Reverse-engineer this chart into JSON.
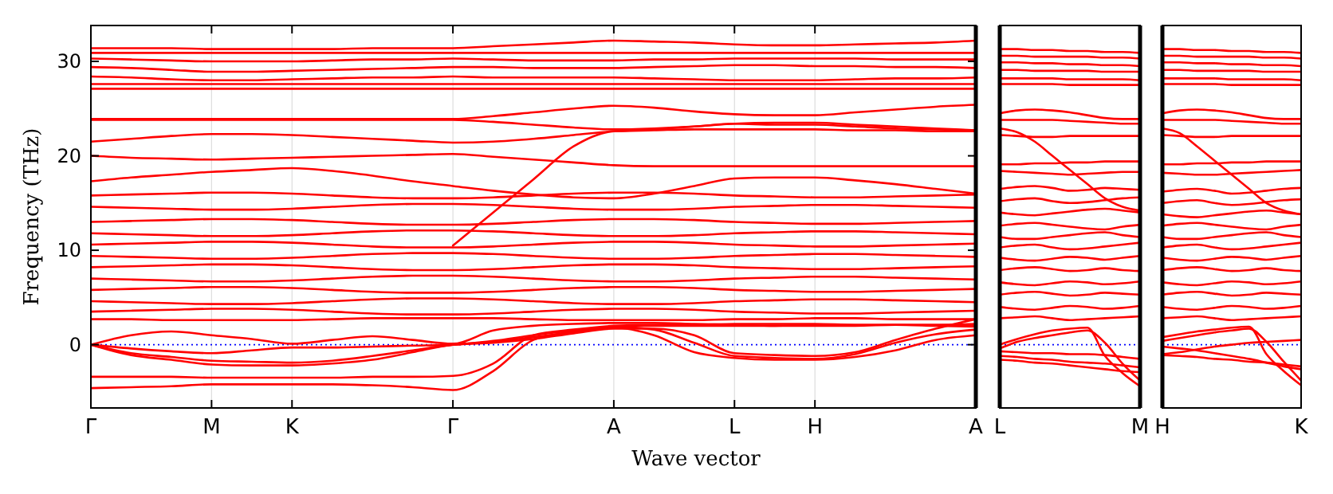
{
  "chart_data": [
    {
      "type": "line",
      "ylabel": "Frequency (THz)",
      "xlabel": "Wave vector",
      "color": "#ff0000",
      "grid": "x",
      "ylim": [
        -6.7,
        33.8
      ],
      "yticks": [
        0,
        10,
        20,
        30
      ],
      "categories": [
        "Γ",
        null,
        null,
        "M",
        null,
        "K",
        null,
        null,
        null,
        "Γ",
        null,
        null,
        null,
        "A",
        null,
        null,
        "L",
        null,
        "H",
        null,
        null,
        null,
        "A"
      ],
      "ref_lines": [
        {
          "axis": "y",
          "value": 0,
          "color": "#0000ff",
          "line_style": "dotted"
        }
      ],
      "series": [
        {
          "values": [
            31.4,
            31.4,
            31.4,
            31.3,
            31.3,
            31.3,
            31.3,
            31.4,
            31.4,
            31.4,
            31.6,
            31.8,
            32.0,
            32.2,
            32.1,
            32.0,
            31.8,
            31.7,
            31.7,
            31.8,
            31.9,
            32.0,
            32.2
          ]
        },
        {
          "values": [
            30.9,
            30.9,
            30.9,
            30.9,
            30.9,
            30.9,
            30.9,
            30.9,
            30.9,
            30.9,
            30.9,
            30.9,
            30.9,
            30.9,
            30.9,
            30.9,
            30.9,
            30.9,
            30.9,
            30.9,
            30.9,
            30.9,
            30.9
          ]
        },
        {
          "values": [
            30.3,
            30.2,
            30.1,
            30.0,
            30.0,
            30.0,
            30.1,
            30.2,
            30.2,
            30.3,
            30.2,
            30.1,
            30.1,
            30.1,
            30.2,
            30.2,
            30.3,
            30.3,
            30.3,
            30.3,
            30.2,
            30.2,
            30.2
          ]
        },
        {
          "values": [
            29.4,
            29.3,
            29.1,
            28.9,
            28.9,
            29.0,
            29.1,
            29.2,
            29.3,
            29.4,
            29.4,
            29.3,
            29.3,
            29.3,
            29.4,
            29.5,
            29.6,
            29.6,
            29.5,
            29.5,
            29.4,
            29.4,
            29.3
          ]
        },
        {
          "values": [
            28.4,
            28.3,
            28.1,
            28.0,
            28.0,
            28.1,
            28.2,
            28.3,
            28.3,
            28.4,
            28.3,
            28.3,
            28.3,
            28.3,
            28.2,
            28.1,
            28.0,
            28.0,
            28.0,
            28.1,
            28.2,
            28.2,
            28.3
          ]
        },
        {
          "values": [
            27.6,
            27.6,
            27.6,
            27.6,
            27.6,
            27.6,
            27.6,
            27.6,
            27.6,
            27.6,
            27.6,
            27.6,
            27.6,
            27.6,
            27.6,
            27.6,
            27.6,
            27.6,
            27.6,
            27.6,
            27.6,
            27.6,
            27.6
          ]
        },
        {
          "values": [
            27.1,
            27.1,
            27.1,
            27.1,
            27.1,
            27.1,
            27.1,
            27.1,
            27.1,
            27.1,
            27.1,
            27.1,
            27.1,
            27.1,
            27.1,
            27.1,
            27.1,
            27.1,
            27.1,
            27.1,
            27.1,
            27.1,
            27.1
          ]
        },
        {
          "values": [
            23.9,
            23.9,
            23.9,
            23.9,
            23.9,
            23.9,
            23.9,
            23.9,
            23.9,
            23.9,
            24.2,
            24.6,
            25.0,
            25.3,
            25.1,
            24.7,
            24.4,
            24.3,
            24.3,
            24.6,
            24.9,
            25.2,
            25.4
          ]
        },
        {
          "values": [
            23.8,
            23.8,
            23.8,
            23.8,
            23.8,
            23.8,
            23.8,
            23.8,
            23.8,
            23.8,
            23.6,
            23.3,
            23.0,
            22.8,
            22.9,
            23.1,
            23.4,
            23.3,
            23.3,
            23.1,
            22.9,
            22.8,
            22.7
          ]
        },
        {
          "values": [
            21.5,
            21.8,
            22.1,
            22.3,
            22.3,
            22.2,
            22.0,
            21.8,
            21.6,
            21.4,
            21.5,
            21.8,
            22.2,
            22.6,
            22.8,
            23.1,
            23.4,
            23.5,
            23.5,
            23.3,
            23.1,
            22.9,
            22.7
          ]
        },
        {
          "values": [
            20.0,
            19.8,
            19.7,
            19.6,
            19.7,
            19.8,
            19.9,
            20.0,
            20.1,
            20.2,
            19.9,
            19.6,
            19.3,
            19.0,
            18.9,
            18.9,
            18.9,
            18.9,
            18.9,
            18.9,
            18.9,
            18.9,
            18.9
          ]
        },
        {
          "values": [
            null,
            null,
            null,
            null,
            null,
            null,
            null,
            null,
            null,
            10.5,
            14.0,
            17.5,
            21.0,
            22.6,
            22.7,
            22.8,
            22.8,
            22.8,
            22.8,
            22.7,
            22.7,
            22.6,
            22.6
          ]
        },
        {
          "values": [
            17.3,
            17.7,
            18.0,
            18.3,
            18.5,
            18.7,
            18.4,
            17.9,
            17.3,
            16.8,
            16.3,
            15.9,
            15.6,
            15.5,
            16.0,
            16.8,
            17.6,
            17.7,
            17.7,
            17.4,
            17.0,
            16.5,
            16.0
          ]
        },
        {
          "values": [
            15.8,
            15.9,
            16.0,
            16.1,
            16.1,
            16.0,
            15.8,
            15.6,
            15.5,
            15.5,
            15.6,
            15.8,
            16.0,
            16.1,
            16.1,
            16.0,
            15.8,
            15.7,
            15.6,
            15.6,
            15.7,
            15.8,
            15.9
          ]
        },
        {
          "values": [
            14.6,
            14.5,
            14.4,
            14.3,
            14.3,
            14.4,
            14.6,
            14.8,
            14.9,
            14.9,
            14.8,
            14.6,
            14.4,
            14.3,
            14.3,
            14.4,
            14.6,
            14.7,
            14.8,
            14.8,
            14.7,
            14.6,
            14.5
          ]
        },
        {
          "values": [
            13.0,
            13.1,
            13.2,
            13.3,
            13.3,
            13.2,
            13.0,
            12.8,
            12.7,
            12.7,
            12.8,
            13.0,
            13.2,
            13.3,
            13.3,
            13.2,
            13.0,
            12.9,
            12.8,
            12.8,
            12.9,
            13.0,
            13.1
          ]
        },
        {
          "values": [
            11.8,
            11.7,
            11.6,
            11.5,
            11.5,
            11.6,
            11.8,
            12.0,
            12.1,
            12.1,
            12.0,
            11.8,
            11.6,
            11.5,
            11.5,
            11.6,
            11.8,
            11.9,
            12.0,
            12.0,
            11.9,
            11.8,
            11.7
          ]
        },
        {
          "values": [
            10.6,
            10.7,
            10.8,
            10.9,
            10.9,
            10.8,
            10.6,
            10.4,
            10.3,
            10.3,
            10.4,
            10.6,
            10.8,
            10.9,
            10.9,
            10.8,
            10.6,
            10.5,
            10.4,
            10.4,
            10.5,
            10.6,
            10.7
          ]
        },
        {
          "values": [
            9.4,
            9.3,
            9.2,
            9.1,
            9.1,
            9.2,
            9.4,
            9.6,
            9.7,
            9.7,
            9.6,
            9.4,
            9.2,
            9.1,
            9.1,
            9.2,
            9.4,
            9.5,
            9.6,
            9.6,
            9.5,
            9.4,
            9.3
          ]
        },
        {
          "values": [
            8.2,
            8.3,
            8.4,
            8.5,
            8.5,
            8.4,
            8.2,
            8.0,
            7.9,
            7.9,
            8.0,
            8.2,
            8.4,
            8.5,
            8.5,
            8.4,
            8.2,
            8.1,
            8.0,
            8.0,
            8.1,
            8.2,
            8.3
          ]
        },
        {
          "values": [
            7.0,
            6.9,
            6.8,
            6.7,
            6.7,
            6.8,
            7.0,
            7.2,
            7.3,
            7.3,
            7.2,
            7.0,
            6.8,
            6.7,
            6.7,
            6.8,
            7.0,
            7.1,
            7.2,
            7.2,
            7.1,
            7.0,
            6.9
          ]
        },
        {
          "values": [
            5.8,
            5.9,
            6.0,
            6.1,
            6.1,
            6.0,
            5.8,
            5.6,
            5.5,
            5.5,
            5.6,
            5.8,
            6.0,
            6.1,
            6.1,
            6.0,
            5.8,
            5.7,
            5.6,
            5.6,
            5.7,
            5.8,
            5.9
          ]
        },
        {
          "values": [
            4.6,
            4.5,
            4.4,
            4.3,
            4.3,
            4.4,
            4.6,
            4.8,
            4.9,
            4.9,
            4.8,
            4.6,
            4.4,
            4.3,
            4.3,
            4.4,
            4.6,
            4.7,
            4.8,
            4.8,
            4.7,
            4.6,
            4.5
          ]
        },
        {
          "values": [
            3.5,
            3.6,
            3.7,
            3.8,
            3.8,
            3.7,
            3.5,
            3.3,
            3.2,
            3.2,
            3.3,
            3.5,
            3.7,
            3.8,
            3.8,
            3.7,
            3.5,
            3.4,
            3.3,
            3.3,
            3.4,
            3.5,
            3.6
          ]
        },
        {
          "values": [
            2.7,
            2.7,
            2.6,
            2.6,
            2.6,
            2.6,
            2.7,
            2.8,
            2.8,
            2.8,
            2.8,
            2.7,
            2.6,
            2.6,
            2.6,
            2.6,
            2.7,
            2.7,
            2.8,
            2.8,
            2.7,
            2.7,
            2.7
          ]
        },
        {
          "values": [
            0,
            -0.4,
            -0.7,
            -0.9,
            -0.6,
            -0.3,
            -0.3,
            -0.2,
            -0.1,
            0,
            0.4,
            1.0,
            1.5,
            1.9,
            1.6,
            0.2,
            -1.2,
            -1.4,
            -1.5,
            -1.0,
            0.2,
            1.1,
            1.6
          ]
        },
        {
          "values": [
            0,
            -0.9,
            -1.3,
            -1.7,
            -1.8,
            -1.9,
            -1.7,
            -1.2,
            -0.6,
            0,
            0.3,
            0.8,
            1.3,
            1.8,
            1.0,
            -0.8,
            -1.4,
            -1.6,
            -1.6,
            -1.3,
            -0.6,
            0.5,
            1.0
          ]
        },
        {
          "values": [
            0,
            -1.1,
            -1.6,
            -2.1,
            -2.2,
            -2.2,
            -2.0,
            -1.6,
            -0.8,
            0,
            0.2,
            0.6,
            1.2,
            1.7,
            1.7,
            1.0,
            -0.9,
            -1.1,
            -1.2,
            -0.8,
            0.5,
            1.7,
            2.7
          ]
        },
        {
          "values": [
            0,
            1.0,
            1.4,
            1.0,
            0.6,
            0.1,
            0.5,
            0.9,
            0.5,
            0.1,
            1.5,
            2.0,
            2.2,
            2.3,
            2.3,
            2.2,
            2.1,
            2.0,
            2.0,
            2.0,
            2.1,
            2.1,
            2.1
          ]
        },
        {
          "values": [
            -3.4,
            -3.4,
            -3.4,
            -3.5,
            -3.5,
            -3.5,
            -3.5,
            -3.4,
            -3.4,
            -3.3,
            -2.0,
            1.0,
            1.6,
            2.0,
            2.1,
            2.1,
            2.2,
            2.2,
            2.2,
            2.1,
            2.1,
            2.0,
            1.9
          ]
        },
        {
          "values": [
            -4.6,
            -4.5,
            -4.4,
            -4.2,
            -4.2,
            -4.2,
            -4.2,
            -4.3,
            -4.5,
            -4.8,
            -2.8,
            0.5,
            1.4,
            1.9,
            2.0,
            2.0,
            2.0,
            2.0,
            2.1,
            2.1,
            2.1,
            2.1,
            2.2
          ]
        }
      ]
    },
    {
      "type": "line",
      "color": "#ff0000",
      "tick_labels": "x",
      "ylim": [
        -6.7,
        33.8
      ],
      "categories": [
        "L",
        null,
        null,
        null,
        null,
        null,
        null,
        null,
        "M"
      ],
      "ref_lines": [
        {
          "axis": "y",
          "value": 0,
          "color": "#0000ff",
          "line_style": "dotted"
        }
      ],
      "series": [
        {
          "values": [
            31.3,
            31.3,
            31.2,
            31.2,
            31.1,
            31.1,
            31.0,
            31.0,
            30.9
          ]
        },
        {
          "values": [
            30.6,
            30.6,
            30.5,
            30.5,
            30.5,
            30.5,
            30.4,
            30.4,
            30.3
          ]
        },
        {
          "values": [
            29.9,
            29.9,
            29.8,
            29.8,
            29.7,
            29.7,
            29.6,
            29.6,
            29.5
          ]
        },
        {
          "values": [
            29.1,
            29.1,
            29.0,
            29.0,
            29.0,
            29.0,
            28.9,
            28.9,
            28.9
          ]
        },
        {
          "values": [
            28.2,
            28.2,
            28.2,
            28.2,
            28.1,
            28.1,
            28.1,
            28.1,
            28.0
          ]
        },
        {
          "values": [
            27.6,
            27.6,
            27.6,
            27.6,
            27.5,
            27.5,
            27.5,
            27.5,
            27.5
          ]
        },
        {
          "values": [
            24.5,
            24.8,
            24.9,
            24.8,
            24.6,
            24.3,
            24.0,
            23.9,
            23.9
          ]
        },
        {
          "values": [
            23.8,
            23.8,
            23.8,
            23.8,
            23.7,
            23.6,
            23.5,
            23.4,
            23.4
          ]
        },
        {
          "values": [
            22.2,
            22.1,
            22.0,
            22.0,
            22.1,
            22.1,
            22.1,
            22.1,
            22.1
          ]
        },
        {
          "values": [
            22.9,
            22.5,
            21.5,
            20.0,
            18.5,
            17.0,
            15.5,
            14.6,
            14.2
          ]
        },
        {
          "values": [
            19.1,
            19.1,
            19.2,
            19.2,
            19.3,
            19.3,
            19.4,
            19.4,
            19.4
          ]
        },
        {
          "values": [
            18.4,
            18.3,
            18.2,
            18.1,
            18.0,
            18.1,
            18.2,
            18.3,
            18.3
          ]
        },
        {
          "values": [
            16.5,
            16.7,
            16.8,
            16.6,
            16.3,
            16.4,
            16.6,
            16.5,
            16.4
          ]
        },
        {
          "values": [
            15.2,
            15.4,
            15.5,
            15.2,
            15.0,
            15.1,
            15.3,
            15.5,
            15.6
          ]
        },
        {
          "values": [
            14.0,
            13.8,
            13.7,
            13.9,
            14.1,
            14.3,
            14.4,
            14.2,
            14.0
          ]
        },
        {
          "values": [
            12.6,
            12.8,
            12.9,
            12.7,
            12.5,
            12.3,
            12.2,
            12.5,
            12.7
          ]
        },
        {
          "values": [
            11.4,
            11.2,
            11.2,
            11.4,
            11.6,
            11.8,
            11.9,
            11.6,
            11.4
          ]
        },
        {
          "values": [
            10.3,
            10.5,
            10.6,
            10.3,
            10.1,
            10.2,
            10.4,
            10.6,
            10.8
          ]
        },
        {
          "values": [
            9.2,
            9.0,
            8.9,
            9.1,
            9.3,
            9.2,
            9.0,
            9.2,
            9.4
          ]
        },
        {
          "values": [
            7.9,
            8.1,
            8.2,
            8.0,
            7.8,
            7.9,
            8.1,
            7.9,
            7.8
          ]
        },
        {
          "values": [
            6.6,
            6.4,
            6.3,
            6.5,
            6.7,
            6.6,
            6.4,
            6.5,
            6.7
          ]
        },
        {
          "values": [
            5.3,
            5.5,
            5.6,
            5.4,
            5.2,
            5.3,
            5.5,
            5.4,
            5.3
          ]
        },
        {
          "values": [
            4.0,
            3.8,
            3.7,
            3.9,
            4.1,
            4.0,
            3.8,
            3.9,
            4.1
          ]
        },
        {
          "values": [
            2.8,
            2.9,
            3.0,
            2.8,
            2.6,
            2.7,
            2.8,
            2.9,
            3.0
          ]
        },
        {
          "values": [
            0,
            0.6,
            1.1,
            1.5,
            1.7,
            1.8,
            -1.2,
            -3.0,
            -4.4
          ]
        },
        {
          "values": [
            -0.4,
            0.3,
            0.7,
            1.0,
            1.3,
            1.5,
            0.2,
            -2.0,
            -3.8
          ]
        },
        {
          "values": [
            -0.7,
            -0.8,
            -0.9,
            -0.9,
            -1.0,
            -1.0,
            -1.1,
            -1.3,
            -1.5
          ]
        },
        {
          "values": [
            -1.2,
            -1.3,
            -1.5,
            -1.6,
            -1.8,
            -1.9,
            -2.0,
            -2.2,
            -2.4
          ]
        },
        {
          "values": [
            -1.6,
            -1.7,
            -1.9,
            -2.0,
            -2.2,
            -2.4,
            -2.6,
            -2.8,
            -2.9
          ]
        }
      ]
    },
    {
      "type": "line",
      "color": "#ff0000",
      "tick_labels": "x",
      "ylim": [
        -6.7,
        33.8
      ],
      "categories": [
        "H",
        null,
        null,
        null,
        null,
        null,
        null,
        null,
        "K"
      ],
      "ref_lines": [
        {
          "axis": "y",
          "value": 0,
          "color": "#0000ff",
          "line_style": "dotted"
        }
      ],
      "series": [
        {
          "values": [
            31.3,
            31.3,
            31.2,
            31.2,
            31.1,
            31.1,
            31.0,
            31.0,
            30.9
          ]
        },
        {
          "values": [
            30.6,
            30.6,
            30.5,
            30.5,
            30.5,
            30.5,
            30.4,
            30.4,
            30.3
          ]
        },
        {
          "values": [
            29.9,
            29.9,
            29.8,
            29.8,
            29.7,
            29.7,
            29.6,
            29.6,
            29.5
          ]
        },
        {
          "values": [
            29.1,
            29.1,
            29.0,
            29.0,
            29.0,
            29.0,
            28.9,
            28.9,
            28.9
          ]
        },
        {
          "values": [
            28.2,
            28.2,
            28.2,
            28.2,
            28.1,
            28.1,
            28.1,
            28.1,
            28.0
          ]
        },
        {
          "values": [
            27.6,
            27.6,
            27.6,
            27.6,
            27.5,
            27.5,
            27.5,
            27.5,
            27.5
          ]
        },
        {
          "values": [
            24.5,
            24.8,
            24.9,
            24.8,
            24.6,
            24.3,
            24.0,
            23.9,
            23.9
          ]
        },
        {
          "values": [
            23.8,
            23.8,
            23.8,
            23.8,
            23.7,
            23.6,
            23.5,
            23.4,
            23.4
          ]
        },
        {
          "values": [
            22.2,
            22.1,
            22.0,
            22.0,
            22.1,
            22.1,
            22.1,
            22.1,
            22.1
          ]
        },
        {
          "values": [
            22.9,
            22.4,
            21.0,
            19.5,
            18.0,
            16.5,
            15.0,
            14.2,
            13.8
          ]
        },
        {
          "values": [
            19.1,
            19.1,
            19.2,
            19.2,
            19.3,
            19.3,
            19.4,
            19.4,
            19.4
          ]
        },
        {
          "values": [
            18.2,
            18.1,
            18.0,
            18.0,
            18.1,
            18.2,
            18.3,
            18.4,
            18.5
          ]
        },
        {
          "values": [
            16.2,
            16.4,
            16.5,
            16.3,
            16.0,
            16.1,
            16.3,
            16.5,
            16.6
          ]
        },
        {
          "values": [
            15.0,
            15.2,
            15.3,
            15.0,
            14.8,
            14.9,
            15.1,
            15.3,
            15.4
          ]
        },
        {
          "values": [
            13.8,
            13.6,
            13.5,
            13.7,
            13.9,
            14.1,
            14.2,
            14.0,
            13.8
          ]
        },
        {
          "values": [
            12.6,
            12.8,
            12.9,
            12.7,
            12.5,
            12.3,
            12.2,
            12.5,
            12.7
          ]
        },
        {
          "values": [
            11.4,
            11.2,
            11.2,
            11.4,
            11.6,
            11.8,
            11.9,
            11.6,
            11.4
          ]
        },
        {
          "values": [
            10.3,
            10.5,
            10.6,
            10.3,
            10.1,
            10.2,
            10.4,
            10.6,
            10.8
          ]
        },
        {
          "values": [
            9.2,
            9.0,
            8.9,
            9.1,
            9.3,
            9.2,
            9.0,
            9.2,
            9.4
          ]
        },
        {
          "values": [
            7.9,
            8.1,
            8.2,
            8.0,
            7.8,
            7.9,
            8.1,
            7.9,
            7.8
          ]
        },
        {
          "values": [
            6.6,
            6.4,
            6.3,
            6.5,
            6.7,
            6.6,
            6.4,
            6.5,
            6.7
          ]
        },
        {
          "values": [
            5.3,
            5.5,
            5.6,
            5.4,
            5.2,
            5.3,
            5.5,
            5.4,
            5.3
          ]
        },
        {
          "values": [
            4.0,
            3.8,
            3.7,
            3.9,
            4.1,
            4.0,
            3.8,
            3.9,
            4.1
          ]
        },
        {
          "values": [
            2.8,
            2.9,
            3.0,
            2.8,
            2.6,
            2.7,
            2.8,
            2.9,
            3.0
          ]
        },
        {
          "values": [
            0.8,
            1.1,
            1.4,
            1.6,
            1.8,
            1.9,
            -1.0,
            -2.8,
            -4.3
          ]
        },
        {
          "values": [
            0.4,
            0.7,
            1.0,
            1.3,
            1.5,
            1.7,
            0.3,
            -1.8,
            -3.8
          ]
        },
        {
          "values": [
            -1.0,
            -0.8,
            -0.5,
            -0.2,
            0.0,
            0.2,
            0.3,
            0.4,
            0.5
          ]
        },
        {
          "values": [
            -1.1,
            -1.2,
            -1.3,
            -1.5,
            -1.6,
            -1.8,
            -1.9,
            -2.1,
            -2.3
          ]
        },
        {
          "values": [
            -0.2,
            -0.4,
            -0.6,
            -0.9,
            -1.2,
            -1.5,
            -1.9,
            -2.3,
            -2.6
          ]
        }
      ]
    }
  ]
}
